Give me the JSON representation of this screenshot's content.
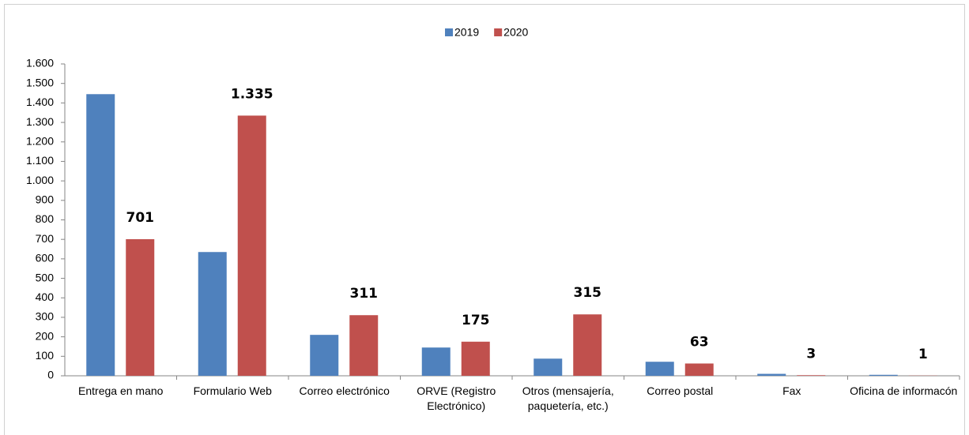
{
  "chart_data": {
    "type": "bar",
    "categories": [
      "Entrega en mano",
      "Formulario Web",
      "Correo electrónico",
      "ORVE (Registro Electrónico)",
      "Otros (mensajería, paquetería, etc.)",
      "Correo postal",
      "Fax",
      "Oficina de informacón"
    ],
    "series": [
      {
        "name": "2019",
        "color": "#4f81bd",
        "values": [
          1445,
          635,
          210,
          145,
          88,
          72,
          10,
          5
        ]
      },
      {
        "name": "2020",
        "color": "#c0504d",
        "values": [
          701,
          1335,
          311,
          175,
          315,
          63,
          3,
          1
        ],
        "value_labels": [
          "701",
          "1.335",
          "311",
          "175",
          "315",
          "63",
          "3",
          "1"
        ]
      }
    ],
    "ylim": [
      0,
      1600
    ],
    "yticks": [
      0,
      100,
      200,
      300,
      400,
      500,
      600,
      700,
      800,
      900,
      {
        "value": 1000,
        "label": "1.000"
      },
      {
        "value": 1100,
        "label": "1.100"
      },
      {
        "value": 1200,
        "label": "1.200"
      },
      {
        "value": 1300,
        "label": "1.300"
      },
      {
        "value": 1400,
        "label": "1.400"
      },
      {
        "value": 1500,
        "label": "1.500"
      },
      {
        "value": 1600,
        "label": "1.600"
      }
    ],
    "legend": "top"
  }
}
